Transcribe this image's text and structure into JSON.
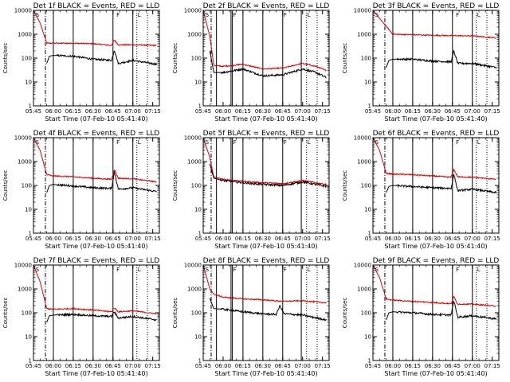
{
  "colors": {
    "events": "#000000",
    "lld": "#dd0000",
    "axis": "#000000",
    "background": "#ffffff"
  },
  "chart_data": [
    {
      "type": "line",
      "title": "Det 1f BLACK = Events, RED = LLD",
      "xlabel": "Start Time (07-Feb-10 05:41:40)",
      "ylabel": "Counts/sec",
      "yscale": "log",
      "ylim": [
        1,
        10000
      ],
      "xlim": [
        "05:45",
        "07:20"
      ],
      "xticks": [
        "05:45",
        "06:00",
        "06:15",
        "06:30",
        "06:45",
        "07:00",
        "07:15"
      ],
      "yticks": [
        "1",
        "10",
        "100",
        "1000",
        "10000"
      ],
      "solid_lines": [
        "06:00",
        "06:15",
        "06:30",
        "06:45",
        "07:00"
      ],
      "dotted_lines": [
        "07:03",
        "07:11"
      ],
      "dashdot_lines": [
        "05:54"
      ],
      "segment_letters": [
        {
          "t": "05:46",
          "label": "S"
        },
        {
          "t": "06:47",
          "label": "F"
        },
        {
          "t": "07:03",
          "label": "L"
        }
      ],
      "series": [
        {
          "key": "lld",
          "color": "#dd0000",
          "x": [
            "05:45",
            "05:50",
            "05:55",
            "06:00",
            "06:15",
            "06:30",
            "06:44",
            "06:46",
            "06:49",
            "07:00",
            "07:18"
          ],
          "values": [
            10000,
            3000,
            420,
            420,
            420,
            400,
            340,
            580,
            360,
            360,
            340
          ]
        },
        {
          "key": "events",
          "color": "#000000",
          "x": [
            "05:55",
            "05:57",
            "06:00",
            "06:15",
            "06:30",
            "06:44",
            "06:46",
            "06:49",
            "07:00",
            "07:18"
          ],
          "values": [
            60,
            120,
            130,
            120,
            90,
            80,
            220,
            60,
            80,
            55
          ]
        }
      ]
    },
    {
      "type": "line",
      "title": "Det 2f BLACK = Events, RED = LLD",
      "xlabel": "Start Time (07-Feb-10 05:41:40)",
      "ylabel": "Counts/sec",
      "yscale": "log",
      "ylim": [
        1,
        10000
      ],
      "xlim": [
        "05:45",
        "07:20"
      ],
      "xticks": [
        "05:45",
        "06:00",
        "06:15",
        "06:30",
        "06:45",
        "07:00",
        "07:15"
      ],
      "yticks": [
        "1",
        "10",
        "100",
        "1000",
        "10000"
      ],
      "solid_lines": [
        "05:55",
        "06:06",
        "06:07",
        "06:15",
        "06:30",
        "06:45",
        "06:59"
      ],
      "dotted_lines": [
        "07:03",
        "07:11"
      ],
      "dashdot_lines": [
        "05:51"
      ],
      "segment_letters": [
        {
          "t": "05:46",
          "label": "S"
        },
        {
          "t": "06:07",
          "label": "F"
        },
        {
          "t": "06:45",
          "label": "F"
        },
        {
          "t": "07:03",
          "label": "L"
        }
      ],
      "series": [
        {
          "key": "lld",
          "color": "#dd0000",
          "x": [
            "05:45",
            "05:50",
            "05:53",
            "06:00",
            "06:15",
            "06:30",
            "06:45",
            "07:00",
            "07:10",
            "07:18"
          ],
          "values": [
            10000,
            800,
            50,
            45,
            55,
            35,
            38,
            60,
            45,
            30
          ]
        },
        {
          "key": "events",
          "color": "#000000",
          "x": [
            "05:50",
            "05:53",
            "06:00",
            "06:15",
            "06:30",
            "06:45",
            "07:00",
            "07:10",
            "07:18"
          ],
          "values": [
            200,
            25,
            25,
            35,
            18,
            20,
            35,
            25,
            15
          ]
        }
      ]
    },
    {
      "type": "line",
      "title": "Det 3f BLACK = Events, RED = LLD",
      "xlabel": "Start Time (07-Feb-10 05:41:40)",
      "ylabel": "Counts/sec",
      "yscale": "log",
      "ylim": [
        1,
        10000
      ],
      "xlim": [
        "05:45",
        "07:20"
      ],
      "xticks": [
        "05:45",
        "06:00",
        "06:15",
        "06:30",
        "06:45",
        "07:00",
        "07:15"
      ],
      "yticks": [
        "1",
        "10",
        "100",
        "1000",
        "10000"
      ],
      "solid_lines": [
        "06:00",
        "06:15",
        "06:30",
        "06:45",
        "07:00"
      ],
      "dotted_lines": [
        "07:03",
        "07:11"
      ],
      "dashdot_lines": [
        "05:54"
      ],
      "segment_letters": [
        {
          "t": "05:46",
          "label": "S"
        },
        {
          "t": "06:47",
          "label": "F"
        },
        {
          "t": "07:03",
          "label": "L"
        }
      ],
      "series": [
        {
          "key": "lld",
          "color": "#dd0000",
          "x": [
            "05:45",
            "06:00",
            "06:30",
            "07:00",
            "07:18"
          ],
          "values": [
            10000,
            1000,
            900,
            850,
            700
          ]
        },
        {
          "key": "events",
          "color": "#000000",
          "x": [
            "05:55",
            "05:57",
            "06:00",
            "06:15",
            "06:30",
            "06:44",
            "06:46",
            "06:49",
            "07:00",
            "07:18"
          ],
          "values": [
            40,
            80,
            90,
            90,
            75,
            70,
            200,
            60,
            60,
            40
          ]
        }
      ]
    },
    {
      "type": "line",
      "title": "Det 4f BLACK = Events, RED = LLD",
      "xlabel": "Start Time (07-Feb-10 05:41:40)",
      "ylabel": "Counts/sec",
      "yscale": "log",
      "ylim": [
        1,
        10000
      ],
      "xlim": [
        "05:45",
        "07:20"
      ],
      "xticks": [
        "05:45",
        "06:00",
        "06:15",
        "06:30",
        "06:45",
        "07:00",
        "07:15"
      ],
      "yticks": [
        "1",
        "10",
        "100",
        "1000",
        "10000"
      ],
      "solid_lines": [
        "06:00",
        "06:15",
        "06:30",
        "06:45",
        "07:00"
      ],
      "dotted_lines": [
        "07:03",
        "07:11"
      ],
      "dashdot_lines": [
        "05:54"
      ],
      "segment_letters": [
        {
          "t": "05:46",
          "label": "S"
        },
        {
          "t": "06:47",
          "label": "F"
        },
        {
          "t": "07:03",
          "label": "L"
        }
      ],
      "series": [
        {
          "key": "lld",
          "color": "#dd0000",
          "x": [
            "05:45",
            "05:50",
            "05:55",
            "06:00",
            "06:15",
            "06:30",
            "06:44",
            "06:46",
            "06:49",
            "07:00",
            "07:18"
          ],
          "values": [
            10000,
            3000,
            280,
            250,
            230,
            200,
            180,
            480,
            200,
            190,
            140
          ]
        },
        {
          "key": "events",
          "color": "#000000",
          "x": [
            "05:55",
            "05:57",
            "06:00",
            "06:15",
            "06:30",
            "06:44",
            "06:46",
            "06:49",
            "07:00",
            "07:18"
          ],
          "values": [
            50,
            100,
            110,
            95,
            80,
            75,
            380,
            70,
            80,
            55
          ]
        }
      ]
    },
    {
      "type": "line",
      "title": "Det 5f BLACK = Events, RED = LLD",
      "xlabel": "Start Time (07-Feb-10 05:41:40)",
      "ylabel": "Counts/sec",
      "yscale": "log",
      "ylim": [
        1,
        10000
      ],
      "xlim": [
        "05:45",
        "07:20"
      ],
      "xticks": [
        "05:45",
        "06:00",
        "06:15",
        "06:30",
        "06:45",
        "07:00",
        "07:15"
      ],
      "yticks": [
        "1",
        "10",
        "100",
        "1000",
        "10000"
      ],
      "solid_lines": [
        "05:55",
        "06:06",
        "06:07",
        "06:15",
        "06:30",
        "06:45",
        "06:59"
      ],
      "dotted_lines": [
        "07:03",
        "07:11"
      ],
      "dashdot_lines": [
        "05:51"
      ],
      "segment_letters": [
        {
          "t": "05:46",
          "label": "S"
        },
        {
          "t": "06:07",
          "label": "F"
        },
        {
          "t": "06:45",
          "label": "F"
        },
        {
          "t": "07:03",
          "label": "L"
        }
      ],
      "series": [
        {
          "key": "lld",
          "color": "#dd0000",
          "x": [
            "05:45",
            "05:50",
            "05:53",
            "06:00",
            "06:15",
            "06:30",
            "06:45",
            "07:00",
            "07:18"
          ],
          "values": [
            10000,
            1500,
            220,
            180,
            150,
            130,
            120,
            160,
            110
          ]
        },
        {
          "key": "events",
          "color": "#000000",
          "x": [
            "05:50",
            "05:53",
            "06:00",
            "06:15",
            "06:30",
            "06:45",
            "07:00",
            "07:18"
          ],
          "values": [
            800,
            200,
            160,
            130,
            110,
            100,
            140,
            90
          ]
        }
      ]
    },
    {
      "type": "line",
      "title": "Det 6f BLACK = Events, RED = LLD",
      "xlabel": "Start Time (07-Feb-10 05:41:40)",
      "ylabel": "Counts/sec",
      "yscale": "log",
      "ylim": [
        1,
        10000
      ],
      "xlim": [
        "05:45",
        "07:20"
      ],
      "xticks": [
        "05:45",
        "06:00",
        "06:15",
        "06:30",
        "06:45",
        "07:00",
        "07:15"
      ],
      "yticks": [
        "1",
        "10",
        "100",
        "1000",
        "10000"
      ],
      "solid_lines": [
        "06:00",
        "06:15",
        "06:30",
        "06:45",
        "07:00"
      ],
      "dotted_lines": [
        "07:03",
        "07:11"
      ],
      "dashdot_lines": [
        "05:54"
      ],
      "segment_letters": [
        {
          "t": "05:46",
          "label": "S"
        },
        {
          "t": "06:47",
          "label": "F"
        },
        {
          "t": "07:03",
          "label": "L"
        }
      ],
      "series": [
        {
          "key": "lld",
          "color": "#dd0000",
          "x": [
            "05:45",
            "05:50",
            "05:55",
            "06:00",
            "06:15",
            "06:30",
            "06:44",
            "06:46",
            "06:49",
            "07:00",
            "07:18"
          ],
          "values": [
            10000,
            3000,
            320,
            300,
            280,
            250,
            220,
            480,
            230,
            220,
            180
          ]
        },
        {
          "key": "events",
          "color": "#000000",
          "x": [
            "05:55",
            "05:57",
            "06:00",
            "06:15",
            "06:30",
            "06:44",
            "06:46",
            "06:49",
            "07:00",
            "07:18"
          ],
          "values": [
            50,
            90,
            100,
            90,
            80,
            75,
            300,
            60,
            70,
            50
          ]
        }
      ]
    },
    {
      "type": "line",
      "title": "Det 7f BLACK = Events, RED = LLD",
      "xlabel": "Start Time (07-Feb-10 05:41:40)",
      "ylabel": "Counts/sec",
      "yscale": "log",
      "ylim": [
        1,
        10000
      ],
      "xlim": [
        "05:45",
        "07:20"
      ],
      "xticks": [
        "05:45",
        "06:00",
        "06:15",
        "06:30",
        "06:45",
        "07:00",
        "07:15"
      ],
      "yticks": [
        "1",
        "10",
        "100",
        "1000",
        "10000"
      ],
      "solid_lines": [
        "06:00",
        "06:15",
        "06:30",
        "06:45",
        "07:00"
      ],
      "dotted_lines": [
        "07:03",
        "07:11"
      ],
      "dashdot_lines": [
        "05:54"
      ],
      "segment_letters": [
        {
          "t": "05:46",
          "label": "S"
        },
        {
          "t": "06:47",
          "label": "F"
        },
        {
          "t": "07:03",
          "label": "L"
        }
      ],
      "series": [
        {
          "key": "lld",
          "color": "#dd0000",
          "x": [
            "05:45",
            "05:50",
            "05:55",
            "06:00",
            "06:15",
            "06:30",
            "06:44",
            "06:46",
            "06:49",
            "07:00",
            "07:18"
          ],
          "values": [
            10000,
            2000,
            150,
            140,
            150,
            130,
            110,
            160,
            110,
            120,
            90
          ]
        },
        {
          "key": "events",
          "color": "#000000",
          "x": [
            "05:55",
            "05:57",
            "06:00",
            "06:15",
            "06:30",
            "06:44",
            "06:46",
            "06:49",
            "07:00",
            "07:18"
          ],
          "values": [
            40,
            75,
            80,
            85,
            75,
            70,
            110,
            60,
            70,
            50
          ]
        }
      ]
    },
    {
      "type": "line",
      "title": "Det 8f BLACK = Events, RED = LLD",
      "xlabel": "Start Time (07-Feb-10 05:41:40)",
      "ylabel": "Counts/sec",
      "yscale": "log",
      "ylim": [
        1,
        10000
      ],
      "xlim": [
        "05:45",
        "07:20"
      ],
      "xticks": [
        "05:45",
        "06:00",
        "06:15",
        "06:30",
        "06:45",
        "07:00",
        "07:15"
      ],
      "yticks": [
        "1",
        "10",
        "100",
        "1000",
        "10000"
      ],
      "solid_lines": [
        "05:55",
        "06:06",
        "06:07",
        "06:15",
        "06:30",
        "06:45",
        "06:59"
      ],
      "dotted_lines": [
        "07:03",
        "07:11"
      ],
      "dashdot_lines": [
        "05:51"
      ],
      "segment_letters": [
        {
          "t": "05:46",
          "label": "S"
        },
        {
          "t": "06:07",
          "label": "F"
        },
        {
          "t": "06:45",
          "label": "F"
        },
        {
          "t": "07:03",
          "label": "L"
        }
      ],
      "series": [
        {
          "key": "lld",
          "color": "#dd0000",
          "x": [
            "05:45",
            "05:50",
            "05:53",
            "06:00",
            "06:15",
            "06:30",
            "06:45",
            "07:00",
            "07:18"
          ],
          "values": [
            10000,
            1000,
            600,
            450,
            380,
            350,
            300,
            320,
            260
          ]
        },
        {
          "key": "events",
          "color": "#000000",
          "x": [
            "05:50",
            "05:53",
            "06:00",
            "06:15",
            "06:30",
            "06:40",
            "06:43",
            "06:46",
            "07:00",
            "07:18"
          ],
          "values": [
            400,
            150,
            140,
            110,
            90,
            85,
            200,
            90,
            80,
            50
          ]
        }
      ]
    },
    {
      "type": "line",
      "title": "Det 9f BLACK = Events, RED = LLD",
      "xlabel": "Start Time (07-Feb-10 05:41:40)",
      "ylabel": "Counts/sec",
      "yscale": "log",
      "ylim": [
        1,
        10000
      ],
      "xlim": [
        "05:45",
        "07:20"
      ],
      "xticks": [
        "05:45",
        "06:00",
        "06:15",
        "06:30",
        "06:45",
        "07:00",
        "07:15"
      ],
      "yticks": [
        "1",
        "10",
        "100",
        "1000",
        "10000"
      ],
      "solid_lines": [
        "06:00",
        "06:15",
        "06:30",
        "06:45",
        "07:00"
      ],
      "dotted_lines": [
        "07:03",
        "07:11"
      ],
      "dashdot_lines": [
        "05:54"
      ],
      "segment_letters": [
        {
          "t": "05:46",
          "label": "S"
        },
        {
          "t": "06:47",
          "label": "F"
        },
        {
          "t": "07:03",
          "label": "L"
        }
      ],
      "series": [
        {
          "key": "lld",
          "color": "#dd0000",
          "x": [
            "05:45",
            "05:50",
            "05:55",
            "06:00",
            "06:15",
            "06:30",
            "06:44",
            "06:46",
            "06:49",
            "07:00",
            "07:18"
          ],
          "values": [
            10000,
            3000,
            380,
            340,
            300,
            270,
            240,
            480,
            230,
            230,
            190
          ]
        },
        {
          "key": "events",
          "color": "#000000",
          "x": [
            "05:55",
            "05:57",
            "06:00",
            "06:15",
            "06:30",
            "06:44",
            "06:46",
            "06:49",
            "07:00",
            "07:18"
          ],
          "values": [
            50,
            100,
            110,
            100,
            85,
            80,
            330,
            65,
            75,
            55
          ]
        }
      ]
    }
  ]
}
